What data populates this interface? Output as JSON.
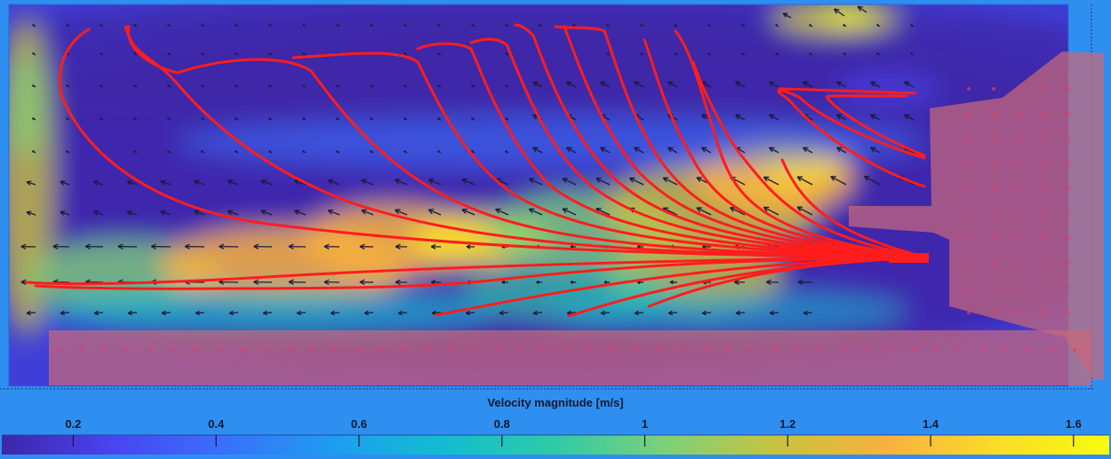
{
  "chart_data": {
    "type": "heatmap",
    "subtype": "velocity-field-with-quiver-and-streamlines",
    "colorbar": {
      "label": "Velocity magnitude [m/s]",
      "ticks": [
        0.2,
        0.4,
        0.6,
        0.8,
        1,
        1.2,
        1.4,
        1.6
      ],
      "range": [
        0.1,
        1.65
      ],
      "colormap": "parula",
      "stops": [
        "#3d26a8",
        "#4a44f0",
        "#3a6ffb",
        "#1e9df0",
        "#12bdd0",
        "#2ecba6",
        "#7ed07a",
        "#c9c23e",
        "#f8b13f",
        "#fadd28",
        "#f9fb0e"
      ]
    },
    "streamline_color": "#ff1d1d",
    "arrow_color": "#1c1c3a",
    "overlay_color": "#c8687a",
    "background_color": "#2f8ff0"
  }
}
